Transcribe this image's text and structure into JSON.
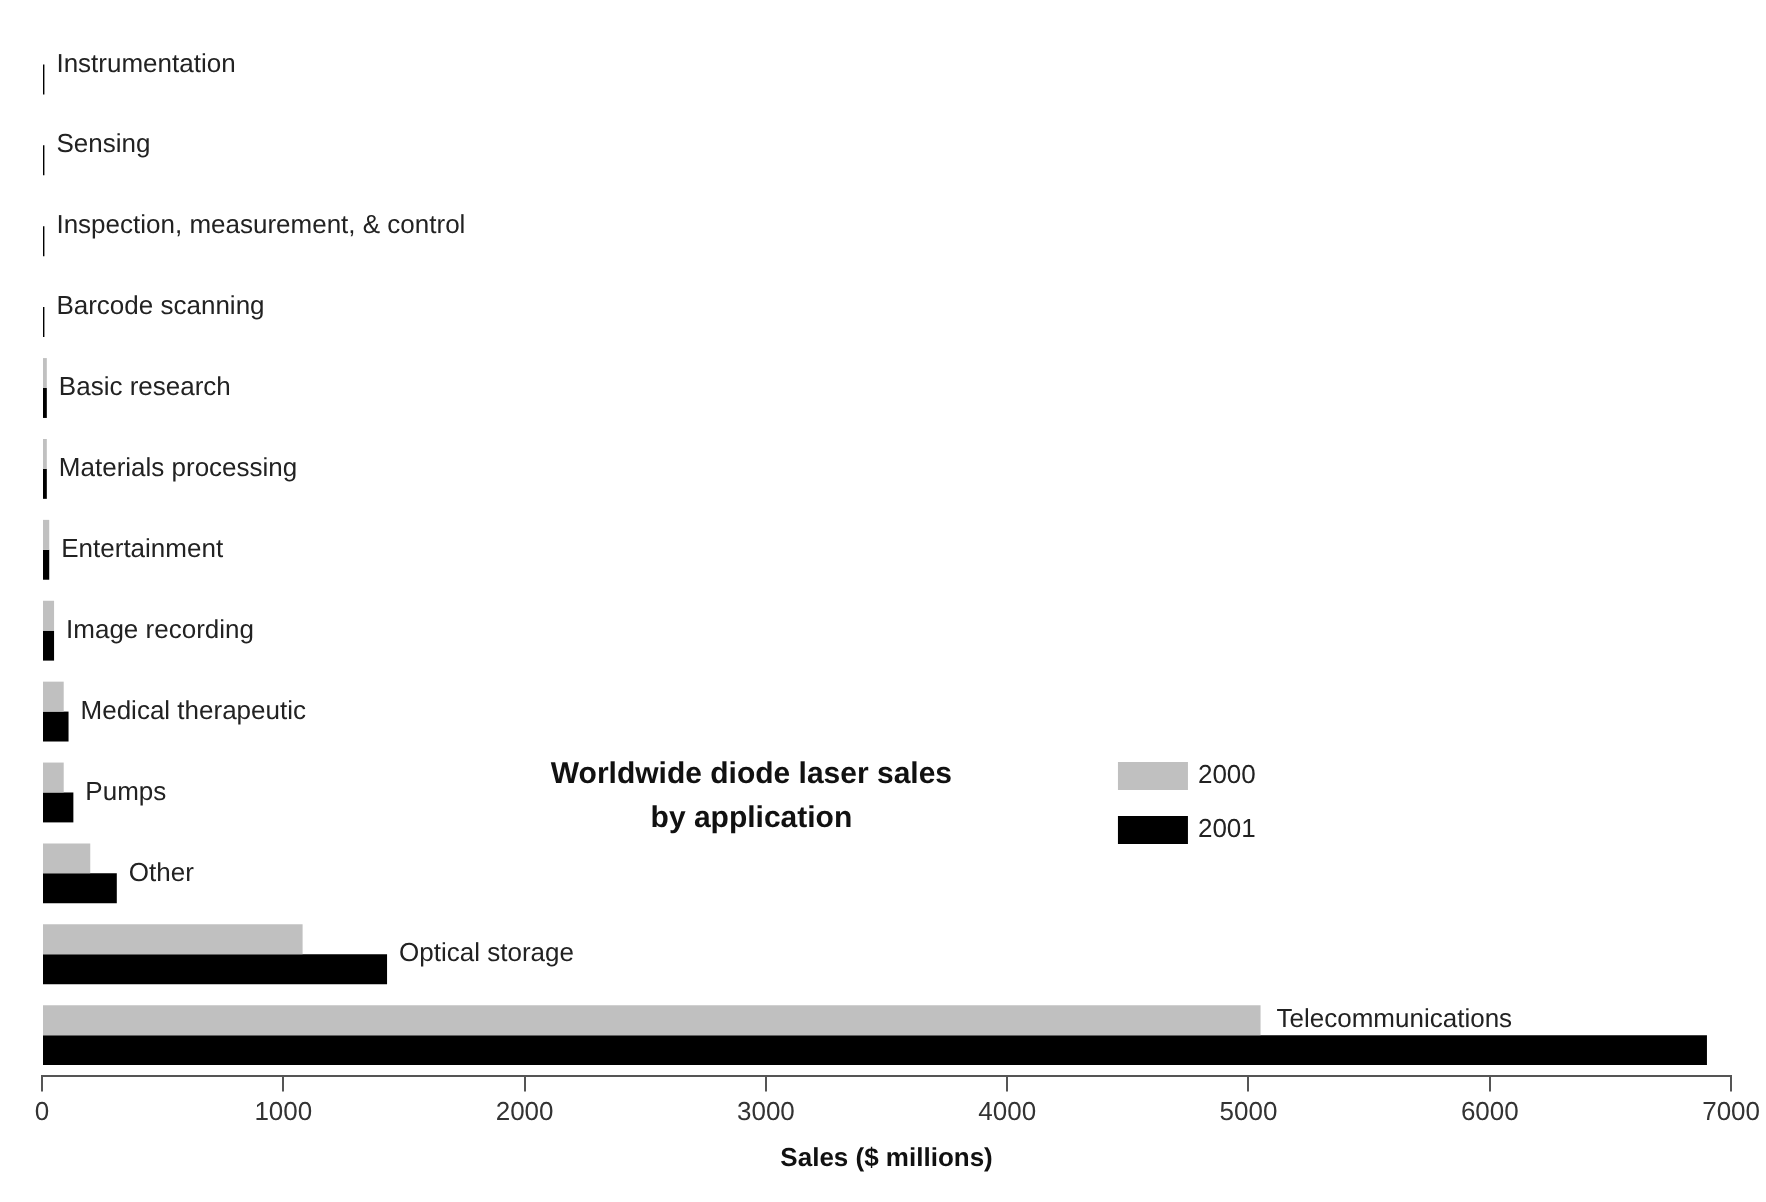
{
  "chart_data": {
    "type": "bar",
    "orientation": "horizontal",
    "title": "Worldwide diode laser sales by application",
    "xlabel": "Sales ($ millions)",
    "categories": [
      "Instrumentation",
      "Sensing",
      "Inspection, measurement, & control",
      "Barcode scanning",
      "Basic research",
      "Materials processing",
      "Entertainment",
      "Image recording",
      "Medical therapeutic",
      "Pumps",
      "Other",
      "Optical storage",
      "Telecommunications"
    ],
    "series": [
      {
        "name": "2000",
        "color": "#c0c0c0",
        "values": [
          null,
          null,
          null,
          null,
          20,
          20,
          30,
          50,
          90,
          90,
          200,
          1080,
          5050
        ]
      },
      {
        "name": "2001",
        "color": "#000000",
        "values": [
          10,
          10,
          10,
          10,
          20,
          20,
          30,
          50,
          110,
          130,
          310,
          1430,
          6900
        ]
      }
    ],
    "xlim": [
      0,
      7000
    ],
    "xticks": [
      0,
      1000,
      2000,
      3000,
      4000,
      5000,
      6000,
      7000
    ],
    "grid": false,
    "legend": "right",
    "tick_labels": "x"
  }
}
